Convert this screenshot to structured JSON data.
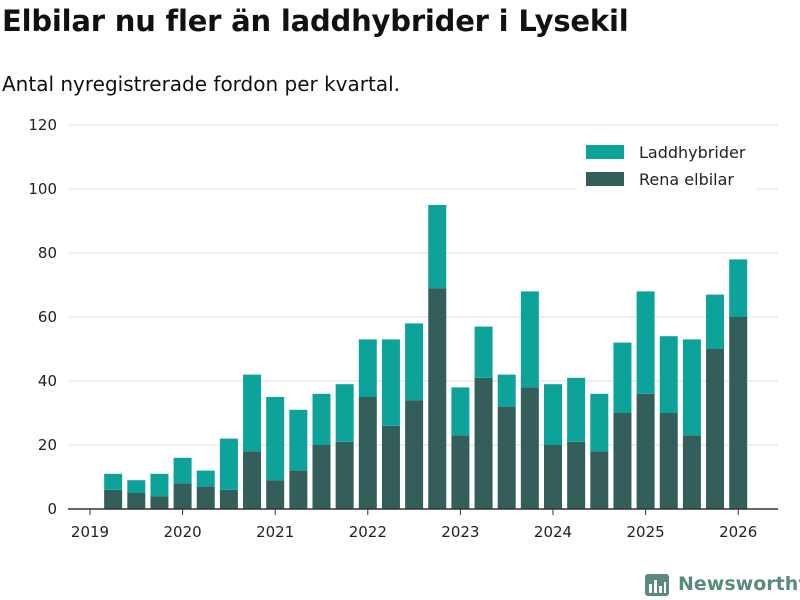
{
  "title": "Elbilar nu fler än laddhybrider i Lysekil",
  "subtitle": "Antal nyregistrerade fordon per kvartal.",
  "brand": {
    "name": "Newsworthy",
    "icon": "newsworthy-logo-icon"
  },
  "colors": {
    "phev": "#0ea39a",
    "bev": "#335e5a",
    "grid": "#dddddd",
    "axis": "#333333",
    "brand": "#5a8a7f"
  },
  "chart_data": {
    "type": "bar",
    "stacked": true,
    "categories": [
      "2019 Q2",
      "2019 Q3",
      "2019 Q4",
      "2020 Q1",
      "2020 Q2",
      "2020 Q3",
      "2020 Q4",
      "2021 Q1",
      "2021 Q2",
      "2021 Q3",
      "2021 Q4",
      "2022 Q1",
      "2022 Q2",
      "2022 Q3",
      "2022 Q4",
      "2023 Q1",
      "2023 Q2",
      "2023 Q3",
      "2023 Q4",
      "2024 Q1",
      "2024 Q2",
      "2024 Q3",
      "2024 Q4",
      "2025 Q1",
      "2025 Q2",
      "2025 Q3",
      "2025 Q4",
      "2026 Q1"
    ],
    "series": [
      {
        "name": "Rena elbilar",
        "values": [
          6,
          5,
          4,
          8,
          7,
          6,
          18,
          9,
          12,
          20,
          21,
          35,
          26,
          34,
          69,
          23,
          41,
          32,
          38,
          20,
          21,
          18,
          30,
          36,
          30,
          23,
          50,
          60
        ]
      },
      {
        "name": "Laddhybrider",
        "values": [
          5,
          4,
          7,
          8,
          5,
          16,
          24,
          26,
          19,
          16,
          18,
          18,
          27,
          24,
          26,
          15,
          16,
          10,
          30,
          19,
          20,
          18,
          22,
          32,
          24,
          30,
          17,
          18
        ]
      }
    ],
    "legend": [
      "Laddhybrider",
      "Rena elbilar"
    ],
    "legend_position": "top-right",
    "x_tick_labels": [
      "2019",
      "2020",
      "2021",
      "2022",
      "2023",
      "2024",
      "2025",
      "2026"
    ],
    "x_range": [
      2019,
      2026.25
    ],
    "y_ticks": [
      0,
      20,
      40,
      60,
      80,
      100,
      120
    ],
    "ylim": [
      0,
      120
    ],
    "grid": true,
    "xlabel": "",
    "ylabel": ""
  }
}
